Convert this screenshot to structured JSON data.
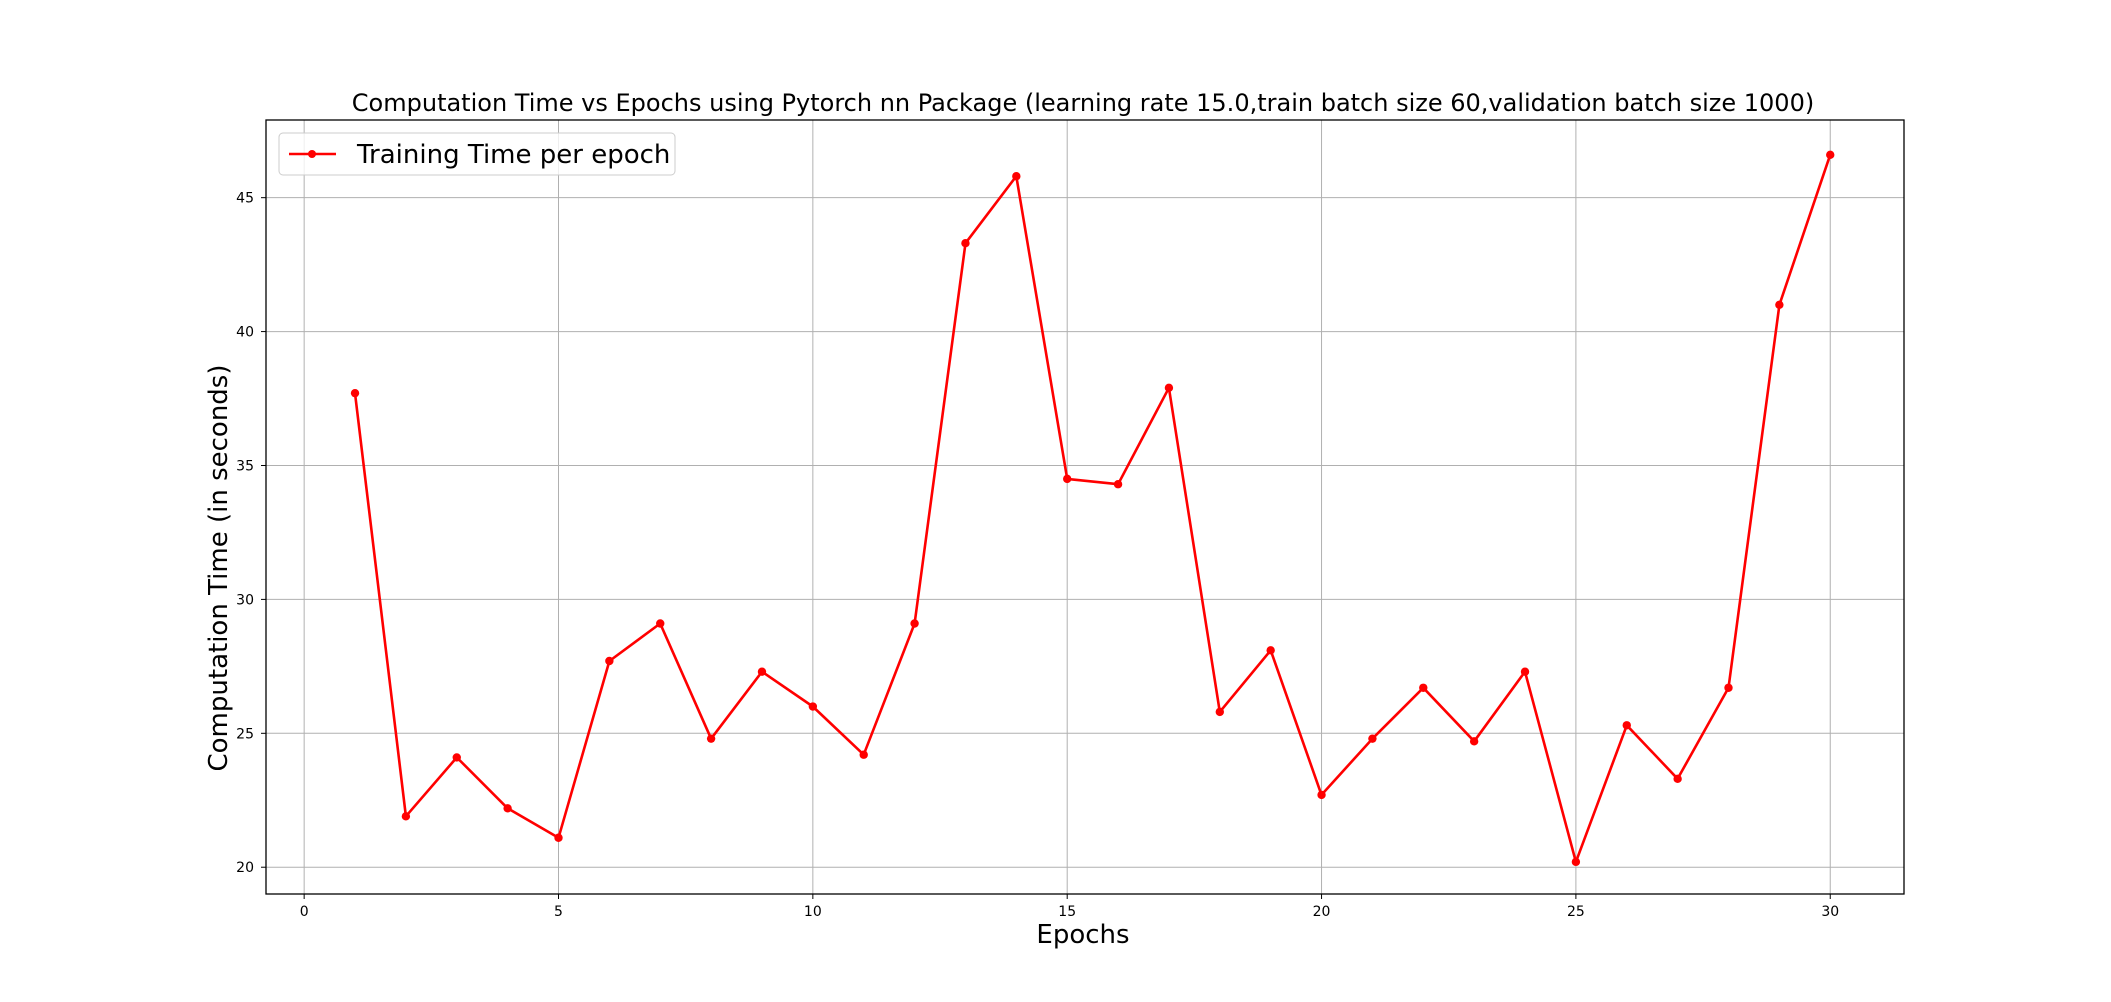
{
  "chart_data": {
    "type": "line",
    "title": "Computation Time vs Epochs using Pytorch nn Package (learning rate 15.0,train batch size 60,validation batch size 1000)",
    "xlabel": "Epochs",
    "ylabel": "Computation Time (in seconds)",
    "xlim": [
      -0.75,
      31.45
    ],
    "ylim": [
      19.0,
      47.9
    ],
    "xticks": [
      0,
      5,
      10,
      15,
      20,
      25,
      30
    ],
    "yticks": [
      20,
      25,
      30,
      35,
      40,
      45
    ],
    "grid": true,
    "legend_position": "top-left",
    "series": [
      {
        "name": "Training Time per epoch",
        "color": "#ff0000",
        "marker": "circle",
        "x": [
          1,
          2,
          3,
          4,
          5,
          6,
          7,
          8,
          9,
          10,
          11,
          12,
          13,
          14,
          15,
          16,
          17,
          18,
          19,
          20,
          21,
          22,
          23,
          24,
          25,
          26,
          27,
          28,
          29,
          30
        ],
        "values": [
          37.7,
          21.9,
          24.1,
          22.2,
          21.1,
          27.7,
          29.1,
          24.8,
          27.3,
          26.0,
          24.2,
          29.1,
          43.3,
          45.8,
          34.5,
          34.3,
          37.9,
          25.8,
          28.1,
          22.7,
          24.8,
          26.7,
          24.7,
          27.3,
          20.2,
          25.3,
          23.3,
          26.7,
          41.0,
          46.6
        ]
      }
    ]
  }
}
